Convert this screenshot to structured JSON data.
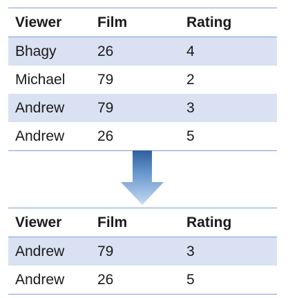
{
  "columns": [
    "Viewer",
    "Film",
    "Rating"
  ],
  "before_table": {
    "rows": [
      [
        "Bhagy",
        "26",
        "4"
      ],
      [
        "Michael",
        "79",
        "2"
      ],
      [
        "Andrew",
        "79",
        "3"
      ],
      [
        "Andrew",
        "26",
        "5"
      ]
    ]
  },
  "after_table": {
    "rows": [
      [
        "Andrew",
        "79",
        "3"
      ],
      [
        "Andrew",
        "26",
        "5"
      ]
    ]
  },
  "colors": {
    "band": "#d9e1f2",
    "rule": "#7f9bd3",
    "arrow_top": "#2f5f9e",
    "arrow_bottom": "#bcd4ee"
  },
  "arrow": {
    "icon": "down-arrow-icon"
  }
}
